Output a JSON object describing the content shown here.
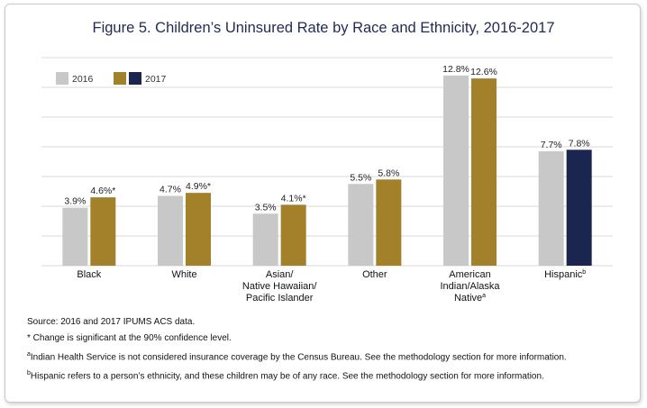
{
  "title": "Figure 5. Children’s Uninsured Rate by Race and Ethnicity, 2016-2017",
  "legend": [
    {
      "label": "2016",
      "colors": [
        "#c8c8c8"
      ]
    },
    {
      "label": "2017",
      "colors": [
        "#a3802a",
        "#1b2650"
      ]
    }
  ],
  "colors": {
    "y2016": "#c8c8c8",
    "y2017": "#a3802a",
    "hispanic2017": "#1b2650",
    "title": "#1f2b53",
    "grid": "#d9d9d9"
  },
  "chart_data": {
    "type": "bar",
    "title": "Figure 5. Children’s Uninsured Rate by Race and Ethnicity, 2016-2017",
    "categories": [
      {
        "lines": [
          "Black"
        ],
        "sup": ""
      },
      {
        "lines": [
          "White"
        ],
        "sup": ""
      },
      {
        "lines": [
          "Asian/",
          "Native Hawaiian/",
          "Pacific Islander"
        ],
        "sup": ""
      },
      {
        "lines": [
          "Other"
        ],
        "sup": ""
      },
      {
        "lines": [
          "American",
          "Indian/Alaska",
          "Native"
        ],
        "sup": "a"
      },
      {
        "lines": [
          "Hispanic"
        ],
        "sup": "b"
      }
    ],
    "series": [
      {
        "name": "2016",
        "values": [
          3.9,
          4.7,
          3.5,
          5.5,
          12.8,
          7.7
        ],
        "labels": [
          "3.9%",
          "4.7%",
          "3.5%",
          "5.5%",
          "12.8%",
          "7.7%"
        ]
      },
      {
        "name": "2017",
        "values": [
          4.6,
          4.9,
          4.1,
          5.8,
          12.6,
          7.8
        ],
        "labels": [
          "4.6%*",
          "4.9%*",
          "4.1%*",
          "5.8%",
          "12.6%",
          "7.8%"
        ]
      }
    ],
    "ylim": [
      0,
      14
    ],
    "gridlines": [
      0,
      2,
      4,
      6,
      8,
      10,
      12,
      14
    ],
    "grid": true,
    "legend_position": "top-left"
  },
  "notes": {
    "source": "Source: 2016 and 2017 IPUMS ACS data.",
    "significance": "* Change is significant at the 90% confidence level.",
    "note_a_mark": "a",
    "note_a": "Indian Health Service is not considered insurance coverage by the Census Bureau. See the methodology section for more information.",
    "note_b_mark": "b",
    "note_b": "Hispanic refers to a person’s ethnicity, and these children may be of any race. See the methodology section for more information."
  }
}
